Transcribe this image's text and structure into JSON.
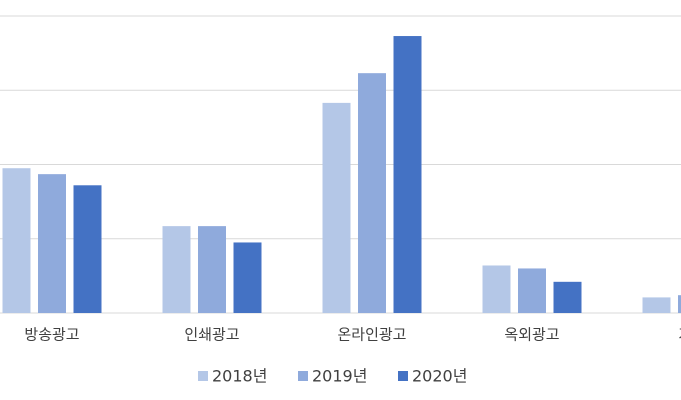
{
  "chart_data": {
    "type": "bar",
    "categories": [
      "방송광고",
      "인쇄광고",
      "온라인광고",
      "옥외광고",
      "기타"
    ],
    "series": [
      {
        "name": "2018년",
        "color": "#b4c7e7",
        "values": [
          1.95,
          1.17,
          2.83,
          0.64,
          0.21
        ]
      },
      {
        "name": "2019년",
        "color": "#8faadc",
        "values": [
          1.87,
          1.17,
          3.23,
          0.6,
          0.24
        ]
      },
      {
        "name": "2020년",
        "color": "#4472c4",
        "values": [
          1.72,
          0.95,
          3.73,
          0.42,
          null
        ]
      }
    ],
    "ylim": [
      0,
      4
    ],
    "yticks": [
      0,
      1,
      2,
      3,
      4
    ],
    "grid": true,
    "legend": "bottom"
  }
}
